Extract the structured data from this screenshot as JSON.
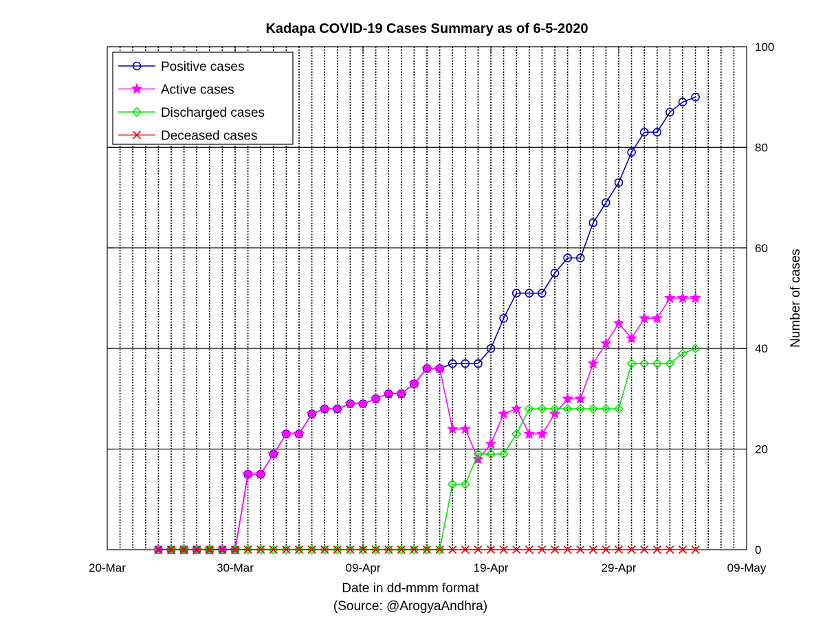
{
  "chart_data": {
    "type": "line",
    "title": "Kadapa COVID-19 Cases Summary as of 6-5-2020",
    "xlabel": "Date in dd-mmm format",
    "xlabel2": "(Source: @ArogyaAndhra)",
    "ylabel": "Number of cases",
    "x_tick_labels": [
      "20-Mar",
      "30-Mar",
      "09-Apr",
      "19-Apr",
      "29-Apr",
      "09-May"
    ],
    "xlim_days": [
      0,
      50
    ],
    "ylim": [
      0,
      100
    ],
    "y_ticks": [
      0,
      20,
      40,
      60,
      80,
      100
    ],
    "y_axis_side": "right",
    "grid": "vertical dotted daily, horizontal solid at y ticks",
    "legend_position": "top-left",
    "x_start_day": 4,
    "series": [
      {
        "name": "Positive cases",
        "color": "#0000b4",
        "marker": "circle",
        "values": [
          0,
          0,
          0,
          0,
          0,
          0,
          0,
          15,
          15,
          19,
          23,
          23,
          27,
          28,
          28,
          29,
          29,
          30,
          31,
          31,
          33,
          36,
          36,
          37,
          37,
          37,
          40,
          46,
          51,
          51,
          51,
          55,
          58,
          58,
          65,
          69,
          73,
          79,
          83,
          83,
          87,
          89,
          90
        ]
      },
      {
        "name": "Active cases",
        "color": "#ff00ff",
        "marker": "star",
        "values": [
          0,
          0,
          0,
          0,
          0,
          0,
          0,
          15,
          15,
          19,
          23,
          23,
          27,
          28,
          28,
          29,
          29,
          30,
          31,
          31,
          33,
          36,
          36,
          24,
          24,
          18,
          21,
          27,
          28,
          23,
          23,
          27,
          30,
          30,
          37,
          41,
          45,
          42,
          46,
          46,
          50,
          50,
          50
        ]
      },
      {
        "name": "Discharged cases",
        "color": "#00e600",
        "marker": "diamond",
        "values": [
          0,
          0,
          0,
          0,
          0,
          0,
          0,
          0,
          0,
          0,
          0,
          0,
          0,
          0,
          0,
          0,
          0,
          0,
          0,
          0,
          0,
          0,
          0,
          13,
          13,
          19,
          19,
          19,
          23,
          28,
          28,
          28,
          28,
          28,
          28,
          28,
          28,
          37,
          37,
          37,
          37,
          39,
          40
        ]
      },
      {
        "name": "Deceased cases",
        "color": "#e60000",
        "marker": "x",
        "values": [
          0,
          0,
          0,
          0,
          0,
          0,
          0,
          0,
          0,
          0,
          0,
          0,
          0,
          0,
          0,
          0,
          0,
          0,
          0,
          0,
          0,
          0,
          0,
          0,
          0,
          0,
          0,
          0,
          0,
          0,
          0,
          0,
          0,
          0,
          0,
          0,
          0,
          0,
          0,
          0,
          0,
          0,
          0
        ]
      }
    ]
  }
}
